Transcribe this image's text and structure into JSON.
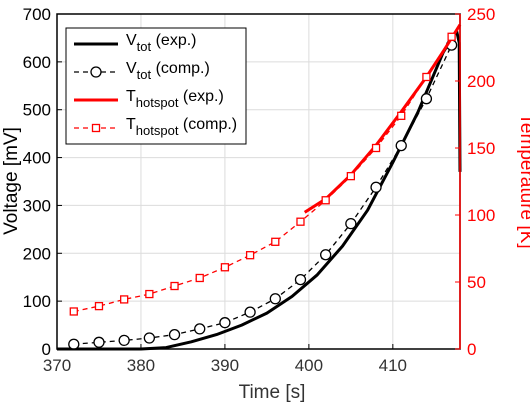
{
  "chart_data": {
    "type": "line",
    "colors": {
      "voltage": "#000000",
      "temperature": "#ff0000"
    },
    "x_axis": {
      "label": "Time [s]",
      "lim": [
        370,
        418
      ],
      "ticks": [
        370,
        380,
        390,
        400,
        410
      ],
      "tick_labels": [
        "370",
        "380",
        "390",
        "400",
        "410"
      ]
    },
    "y_axis_left": {
      "label": "Voltage [mV]",
      "lim": [
        0,
        700
      ],
      "ticks": [
        0,
        100,
        200,
        300,
        400,
        500,
        600,
        700
      ],
      "tick_labels": [
        "0",
        "100",
        "200",
        "300",
        "400",
        "500",
        "600",
        "700"
      ]
    },
    "y_axis_right": {
      "label": "Temperature [K]",
      "lim": [
        0,
        250
      ],
      "ticks": [
        0,
        50,
        100,
        150,
        200,
        250
      ],
      "tick_labels": [
        "0",
        "50",
        "100",
        "150",
        "200",
        "250"
      ]
    },
    "grid": true,
    "legend": {
      "position": "top-left",
      "entries": [
        {
          "main": "V",
          "sub": "tot",
          "suffix": " (exp.)"
        },
        {
          "main": "V",
          "sub": "tot",
          "suffix": " (comp.)"
        },
        {
          "main": "T",
          "sub": "hotspot",
          "suffix": " (exp.)"
        },
        {
          "main": "T",
          "sub": "hotspot",
          "suffix": " (comp.)"
        }
      ]
    },
    "series": [
      {
        "name": "Vtot (exp.)",
        "axis": "left",
        "style": "solid",
        "marker": "none",
        "x": [
          370,
          380,
          383,
          386,
          389,
          392,
          395,
          398,
          401,
          404,
          407,
          410,
          413,
          416,
          417.6,
          417.9,
          418
        ],
        "y": [
          0,
          0,
          3,
          15,
          30,
          50,
          75,
          110,
          155,
          215,
          290,
          390,
          495,
          620,
          665,
          640,
          370
        ]
      },
      {
        "name": "Vtot (comp.)",
        "axis": "left",
        "style": "dashed",
        "marker": "circle",
        "x": [
          372,
          375,
          378,
          381,
          384,
          387,
          390,
          393,
          396,
          399,
          402,
          405,
          408,
          411,
          414,
          417
        ],
        "y": [
          10,
          14,
          18,
          23,
          30,
          42,
          55,
          77,
          105,
          145,
          197,
          262,
          338,
          425,
          523,
          635
        ]
      },
      {
        "name": "Thotspot (exp.)",
        "axis": "right",
        "style": "solid",
        "marker": "none",
        "x": [
          399.5,
          402,
          405,
          408,
          411,
          414,
          416,
          418
        ],
        "y": [
          102,
          112,
          130,
          152,
          177,
          203,
          222,
          242
        ]
      },
      {
        "name": "Thotspot (comp.)",
        "axis": "right",
        "style": "dashed",
        "marker": "square",
        "x": [
          372,
          375,
          378,
          381,
          384,
          387,
          390,
          393,
          396,
          399,
          402,
          405,
          408,
          411,
          414,
          417
        ],
        "y": [
          28,
          32,
          37,
          41,
          47,
          53,
          61,
          70,
          80,
          95,
          111,
          129,
          150,
          174,
          203,
          233
        ]
      }
    ]
  }
}
